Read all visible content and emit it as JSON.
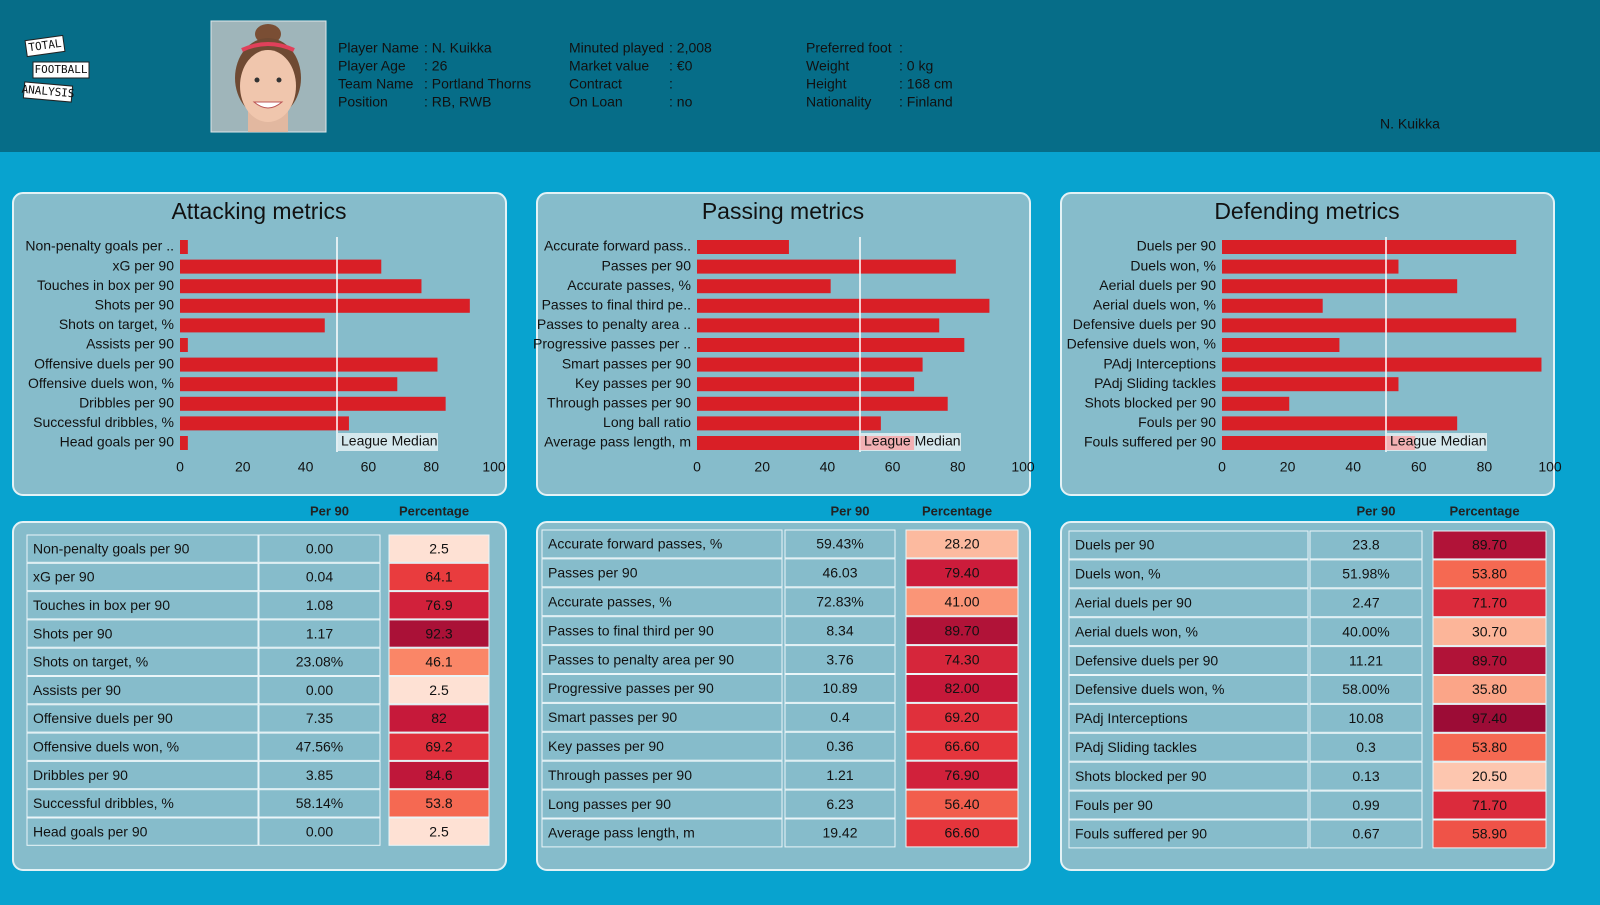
{
  "logo": [
    "TOTAL",
    "FOOTBALL",
    "ANALYSIS"
  ],
  "player": {
    "columns": [
      [
        {
          "label": "Player Name",
          "value": ": N. Kuikka"
        },
        {
          "label": "Player Age",
          "value": ": 26"
        },
        {
          "label": "Team Name",
          "value": ": Portland Thorns"
        },
        {
          "label": "Position",
          "value": ": RB, RWB"
        }
      ],
      [
        {
          "label": "Minuted played",
          "value": ": 2,008"
        },
        {
          "label": "Market value",
          "value": ": €0"
        },
        {
          "label": "Contract",
          "value": ":"
        },
        {
          "label": "On Loan",
          "value": ": no"
        }
      ],
      [
        {
          "label": "Preferred foot",
          "value": ":"
        },
        {
          "label": "Weight",
          "value": ": 0 kg"
        },
        {
          "label": "Height",
          "value": ": 168 cm"
        },
        {
          "label": "Nationality",
          "value": ": Finland"
        }
      ]
    ],
    "short_name": "N. Kuikka"
  },
  "chart_data": [
    {
      "type": "barh",
      "title": "Attacking metrics",
      "color": "#d91f26",
      "categories": [
        "Non-penalty goals per ..",
        "xG per 90",
        "Touches in box per 90",
        "Shots per 90",
        "Shots on target, %",
        "Assists per 90",
        "Offensive duels per 90",
        "Offensive duels won, %",
        "Dribbles per 90",
        "Successful dribbles, %",
        "Head goals per 90"
      ],
      "values": [
        2.5,
        64.1,
        76.9,
        92.3,
        46.1,
        2.5,
        82,
        69.2,
        84.6,
        53.8,
        2.5
      ],
      "xlim": [
        0,
        100
      ],
      "xticks": [
        0,
        20,
        40,
        60,
        80,
        100
      ],
      "median": 50,
      "median_label": "League Median"
    },
    {
      "type": "barh",
      "title": "Passing metrics",
      "color": "#d91f26",
      "categories": [
        "Accurate forward pass..",
        "Passes per 90",
        "Accurate passes, %",
        "Passes to final third pe..",
        "Passes to penalty area ..",
        "Progressive passes per ..",
        "Smart passes per 90",
        "Key passes per 90",
        "Through passes per 90",
        "Long ball ratio",
        "Average pass length, m"
      ],
      "values": [
        28.2,
        79.4,
        41,
        89.7,
        74.3,
        82,
        69.2,
        66.6,
        76.9,
        56.4,
        66.6
      ],
      "xlim": [
        0,
        100
      ],
      "xticks": [
        0,
        20,
        40,
        60,
        80,
        100
      ],
      "median": 50,
      "median_label": "League Median"
    },
    {
      "type": "barh",
      "title": "Defending metrics",
      "color": "#d91f26",
      "categories": [
        "Duels per 90",
        "Duels won, %",
        "Aerial duels per 90",
        "Aerial duels won, %",
        "Defensive duels per 90",
        "Defensive duels won, %",
        "PAdj Interceptions",
        "PAdj Sliding tackles",
        "Shots blocked per 90",
        "Fouls per 90",
        "Fouls suffered per 90"
      ],
      "values": [
        89.7,
        53.8,
        71.7,
        30.7,
        89.7,
        35.8,
        97.4,
        53.8,
        20.5,
        71.7,
        58.9
      ],
      "xlim": [
        0,
        100
      ],
      "xticks": [
        0,
        20,
        40,
        60,
        80,
        100
      ],
      "median": 50,
      "median_label": "League Median"
    }
  ],
  "tables": [
    {
      "header": [
        "Per 90",
        "Percentage"
      ],
      "rows": [
        [
          "Non-penalty goals per 90",
          "0.00",
          "2.5"
        ],
        [
          "xG per 90",
          "0.04",
          "64.1"
        ],
        [
          "Touches in box per 90",
          "1.08",
          "76.9"
        ],
        [
          "Shots per 90",
          "1.17",
          "92.3"
        ],
        [
          "Shots on target, %",
          "23.08%",
          "46.1"
        ],
        [
          "Assists per 90",
          "0.00",
          "2.5"
        ],
        [
          "Offensive duels per 90",
          "7.35",
          "82"
        ],
        [
          "Offensive duels won, %",
          "47.56%",
          "69.2"
        ],
        [
          "Dribbles per 90",
          "3.85",
          "84.6"
        ],
        [
          "Successful dribbles, %",
          "58.14%",
          "53.8"
        ],
        [
          "Head goals per 90",
          "0.00",
          "2.5"
        ]
      ]
    },
    {
      "header": [
        "Per 90",
        "Percentage"
      ],
      "rows": [
        [
          "Accurate forward passes, %",
          "59.43%",
          "28.20"
        ],
        [
          "Passes per 90",
          "46.03",
          "79.40"
        ],
        [
          "Accurate passes, %",
          "72.83%",
          "41.00"
        ],
        [
          "Passes to final third per 90",
          "8.34",
          "89.70"
        ],
        [
          "Passes to penalty area per 90",
          "3.76",
          "74.30"
        ],
        [
          "Progressive passes per 90",
          "10.89",
          "82.00"
        ],
        [
          "Smart passes per 90",
          "0.4",
          "69.20"
        ],
        [
          "Key passes per 90",
          "0.36",
          "66.60"
        ],
        [
          "Through passes per 90",
          "1.21",
          "76.90"
        ],
        [
          "Long passes per 90",
          "6.23",
          "56.40"
        ],
        [
          "Average pass length, m",
          "19.42",
          "66.60"
        ]
      ]
    },
    {
      "header": [
        "Per 90",
        "Percentage"
      ],
      "rows": [
        [
          "Duels per 90",
          "23.8",
          "89.70"
        ],
        [
          "Duels won, %",
          "51.98%",
          "53.80"
        ],
        [
          "Aerial duels per 90",
          "2.47",
          "71.70"
        ],
        [
          "Aerial duels won, %",
          "40.00%",
          "30.70"
        ],
        [
          "Defensive duels per 90",
          "11.21",
          "89.70"
        ],
        [
          "Defensive duels won, %",
          "58.00%",
          "35.80"
        ],
        [
          "PAdj Interceptions",
          "10.08",
          "97.40"
        ],
        [
          "PAdj Sliding tackles",
          "0.3",
          "53.80"
        ],
        [
          "Shots blocked per 90",
          "0.13",
          "20.50"
        ],
        [
          "Fouls per 90",
          "0.99",
          "71.70"
        ],
        [
          "Fouls suffered per 90",
          "0.67",
          "58.90"
        ]
      ]
    }
  ]
}
